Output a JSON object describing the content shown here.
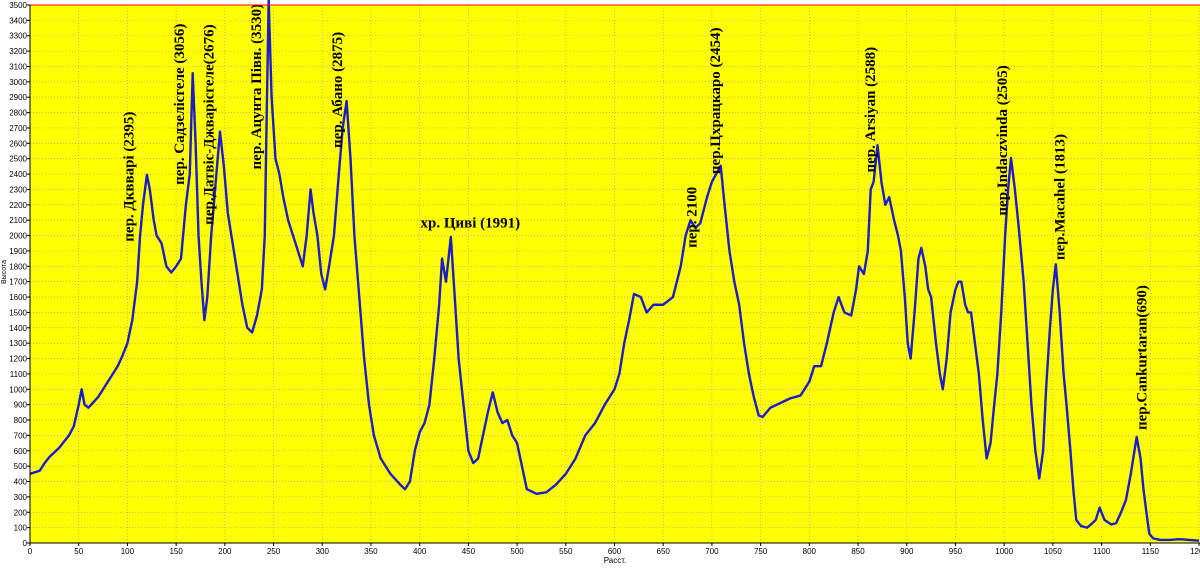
{
  "chart_data": {
    "type": "line",
    "xlabel": "Расст.",
    "ylabel": "Высота",
    "color": "#1c1cc8",
    "background": "#ffff00",
    "grid": true,
    "xlim": [
      0,
      1200
    ],
    "ylim": [
      0,
      3500
    ],
    "xticks": [
      0,
      50,
      100,
      150,
      200,
      250,
      300,
      350,
      400,
      450,
      500,
      550,
      600,
      650,
      700,
      750,
      800,
      850,
      900,
      950,
      1000,
      1050,
      1100,
      1150,
      1200
    ],
    "yticks": [
      0,
      100,
      200,
      300,
      400,
      500,
      600,
      700,
      800,
      900,
      1000,
      1100,
      1200,
      1300,
      1400,
      1500,
      1600,
      1700,
      1800,
      1900,
      2000,
      2100,
      2200,
      2300,
      2400,
      2500,
      2600,
      2700,
      2800,
      2900,
      3000,
      3100,
      3200,
      3300,
      3400,
      3500
    ],
    "x": [
      0,
      5,
      10,
      15,
      20,
      30,
      40,
      45,
      50,
      53,
      56,
      60,
      70,
      80,
      90,
      95,
      100,
      105,
      110,
      113,
      116,
      120,
      123,
      127,
      130,
      135,
      140,
      145,
      150,
      155,
      160,
      164,
      167,
      170,
      173,
      176,
      179,
      182,
      186,
      190,
      195,
      199,
      203,
      208,
      213,
      218,
      223,
      228,
      233,
      238,
      241,
      243,
      245,
      248,
      252,
      256,
      260,
      265,
      270,
      275,
      280,
      284,
      288,
      291,
      295,
      299,
      303,
      307,
      312,
      317,
      321,
      325,
      329,
      333,
      338,
      343,
      348,
      353,
      360,
      370,
      380,
      385,
      390,
      395,
      400,
      405,
      410,
      415,
      420,
      423,
      427,
      432,
      436,
      440,
      445,
      450,
      455,
      460,
      465,
      470,
      475,
      480,
      485,
      490,
      495,
      500,
      505,
      510,
      520,
      530,
      540,
      550,
      560,
      570,
      580,
      590,
      595,
      600,
      605,
      610,
      615,
      620,
      627,
      633,
      640,
      650,
      660,
      668,
      673,
      678,
      683,
      688,
      695,
      700,
      709,
      713,
      718,
      723,
      728,
      733,
      738,
      743,
      748,
      752,
      760,
      770,
      780,
      791,
      800,
      805,
      812,
      818,
      825,
      830,
      836,
      843,
      848,
      851,
      856,
      860,
      863,
      866,
      870,
      874,
      878,
      882,
      887,
      891,
      894,
      898,
      901,
      904,
      908,
      912,
      915,
      919,
      922,
      925,
      930,
      934,
      937,
      941,
      945,
      950,
      953,
      956,
      960,
      963,
      966,
      970,
      974,
      978,
      982,
      986,
      989,
      993,
      997,
      1001,
      1004,
      1007,
      1011,
      1015,
      1020,
      1024,
      1028,
      1032,
      1036,
      1040,
      1043,
      1047,
      1050,
      1053,
      1057,
      1061,
      1064,
      1068,
      1071,
      1074,
      1079,
      1085,
      1089,
      1094,
      1098,
      1103,
      1110,
      1115,
      1120,
      1125,
      1130,
      1136,
      1140,
      1143,
      1146,
      1149,
      1153,
      1160,
      1170,
      1180,
      1190,
      1200
    ],
    "values": [
      450,
      460,
      470,
      520,
      560,
      620,
      700,
      760,
      900,
      1000,
      900,
      880,
      950,
      1050,
      1150,
      1220,
      1300,
      1450,
      1700,
      2000,
      2200,
      2395,
      2300,
      2100,
      2000,
      1950,
      1800,
      1760,
      1800,
      1850,
      2200,
      2400,
      3056,
      2600,
      2000,
      1700,
      1450,
      1600,
      2000,
      2300,
      2676,
      2450,
      2150,
      1950,
      1750,
      1550,
      1400,
      1370,
      1480,
      1650,
      2000,
      2800,
      3530,
      2900,
      2500,
      2400,
      2250,
      2100,
      2000,
      1900,
      1800,
      2000,
      2300,
      2150,
      2000,
      1750,
      1650,
      1800,
      2000,
      2400,
      2700,
      2875,
      2500,
      2000,
      1600,
      1200,
      900,
      700,
      550,
      450,
      380,
      350,
      400,
      600,
      720,
      780,
      900,
      1200,
      1550,
      1850,
      1700,
      1991,
      1600,
      1200,
      900,
      600,
      520,
      550,
      700,
      850,
      980,
      850,
      780,
      800,
      700,
      650,
      500,
      350,
      320,
      330,
      380,
      450,
      550,
      700,
      780,
      900,
      950,
      1000,
      1100,
      1300,
      1450,
      1620,
      1600,
      1500,
      1550,
      1550,
      1600,
      1800,
      2000,
      2100,
      2050,
      2080,
      2250,
      2350,
      2454,
      2200,
      1900,
      1700,
      1550,
      1300,
      1100,
      950,
      830,
      820,
      880,
      910,
      940,
      960,
      1050,
      1150,
      1150,
      1300,
      1500,
      1600,
      1500,
      1480,
      1650,
      1800,
      1750,
      1900,
      2300,
      2350,
      2588,
      2350,
      2200,
      2250,
      2100,
      2000,
      1900,
      1600,
      1300,
      1200,
      1500,
      1850,
      1920,
      1800,
      1650,
      1600,
      1300,
      1100,
      1000,
      1200,
      1500,
      1650,
      1700,
      1700,
      1550,
      1500,
      1500,
      1300,
      1100,
      800,
      550,
      650,
      850,
      1100,
      1500,
      2000,
      2300,
      2505,
      2300,
      2050,
      1700,
      1300,
      900,
      600,
      420,
      600,
      1000,
      1400,
      1650,
      1813,
      1500,
      1100,
      900,
      600,
      350,
      150,
      110,
      100,
      120,
      150,
      230,
      150,
      120,
      130,
      200,
      280,
      450,
      690,
      550,
      350,
      200,
      60,
      30,
      20,
      20,
      25,
      20,
      15
    ],
    "annotations": [
      {
        "text": "пер. Дквварі (2395)",
        "x": 100,
        "y": 1960,
        "rotated": true
      },
      {
        "text": "пер. Садзелісгеле (3056)",
        "x": 152,
        "y": 2330,
        "rotated": true
      },
      {
        "text": "пер.Датвіс-Джварісгеле(2676)",
        "x": 182,
        "y": 2070,
        "rotated": true
      },
      {
        "text": "пер. Ацунта Півн. (3530)",
        "x": 231,
        "y": 2430,
        "rotated": true
      },
      {
        "text": "пер. Абано (2875)",
        "x": 314,
        "y": 2570,
        "rotated": true
      },
      {
        "text": "хр. Циві (1991)",
        "x": 452,
        "y": 2040,
        "rotated": false
      },
      {
        "text": "пер. 2100",
        "x": 678,
        "y": 1920,
        "rotated": true
      },
      {
        "text": "пер.Цхрацкаро (2454)",
        "x": 702,
        "y": 2400,
        "rotated": true
      },
      {
        "text": "пер. Arsiyan (2588)",
        "x": 861,
        "y": 2410,
        "rotated": true
      },
      {
        "text": "пер.Indaczvinda (2505)",
        "x": 997,
        "y": 2130,
        "rotated": true
      },
      {
        "text": "пер.Macahel (1813)",
        "x": 1056,
        "y": 1840,
        "rotated": true
      },
      {
        "text": "пер.Cankurtaran(690)",
        "x": 1140,
        "y": 735,
        "rotated": true
      }
    ]
  }
}
